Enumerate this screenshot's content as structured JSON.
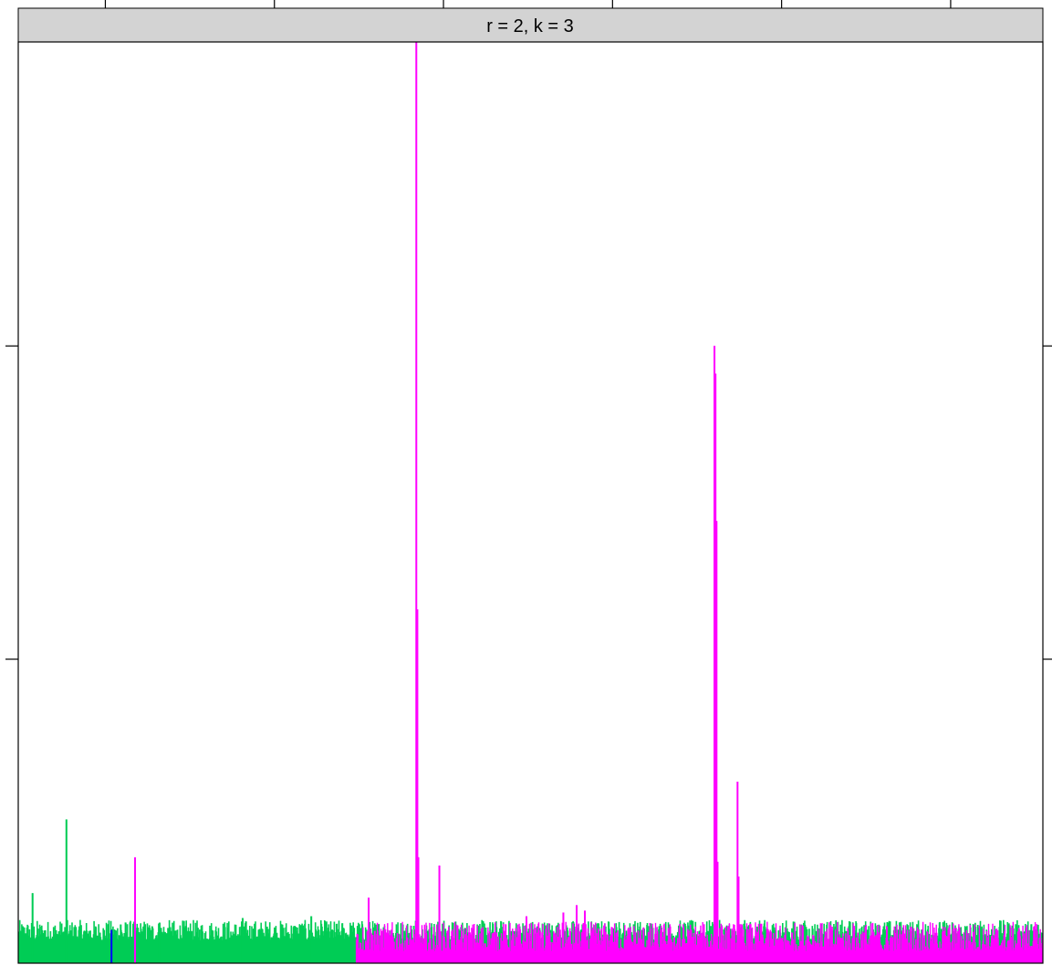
{
  "chart_data": {
    "type": "line",
    "title": "",
    "strip_label": "r = 2, k = 3",
    "strip_color": "#d3d3d3",
    "xlabel": "",
    "ylabel": "",
    "xlim": [
      0,
      1000
    ],
    "ylim": [
      0,
      100
    ],
    "x_ticks": [
      85,
      250,
      415,
      580,
      745,
      910
    ],
    "y_ticks": [
      0,
      33,
      67,
      100
    ],
    "grid": false,
    "legend": "none",
    "series": [
      {
        "color": "#00cc55",
        "baseline": 2.5,
        "noise": 2.2,
        "x_range": [
          0,
          1000
        ],
        "peaks": [
          {
            "x": 14,
            "y": 7.6
          },
          {
            "x": 47,
            "y": 15.6
          },
          {
            "x": 100,
            "y": 4.2
          },
          {
            "x": 138,
            "y": 4.4
          },
          {
            "x": 219,
            "y": 4.9
          },
          {
            "x": 286,
            "y": 5.1
          },
          {
            "x": 388,
            "y": 4.6
          },
          {
            "x": 703,
            "y": 5.1
          },
          {
            "x": 711,
            "y": 4.0
          },
          {
            "x": 843,
            "y": 3.1
          }
        ]
      },
      {
        "color": "#ff00ff",
        "baseline": 1.3,
        "noise": 3.2,
        "x_range": [
          330,
          1000
        ],
        "peaks": [
          {
            "x": 114,
            "y": 11.5
          },
          {
            "x": 342,
            "y": 7.1
          },
          {
            "x": 348,
            "y": 3.5
          },
          {
            "x": 388.5,
            "y": 100.0
          },
          {
            "x": 389.5,
            "y": 38.4
          },
          {
            "x": 390.5,
            "y": 11.5
          },
          {
            "x": 411,
            "y": 10.6
          },
          {
            "x": 496,
            "y": 5.1
          },
          {
            "x": 507,
            "y": 3.3
          },
          {
            "x": 532,
            "y": 5.5
          },
          {
            "x": 545,
            "y": 6.3
          },
          {
            "x": 553,
            "y": 5.7
          },
          {
            "x": 561,
            "y": 3.8
          },
          {
            "x": 578,
            "y": 3.0
          },
          {
            "x": 679.5,
            "y": 67.0
          },
          {
            "x": 680.5,
            "y": 64.0
          },
          {
            "x": 681.5,
            "y": 48.0
          },
          {
            "x": 682.5,
            "y": 11.0
          },
          {
            "x": 702,
            "y": 19.7
          },
          {
            "x": 703,
            "y": 9.4
          },
          {
            "x": 745,
            "y": 2.7
          },
          {
            "x": 752,
            "y": 2.4
          },
          {
            "x": 836,
            "y": 2.9
          },
          {
            "x": 960,
            "y": 2.2
          }
        ]
      },
      {
        "color": "#0000ff",
        "baseline": 0,
        "noise": 0,
        "x_range": [
          90,
          92
        ],
        "peaks": [
          {
            "x": 91,
            "y": 3.6
          }
        ]
      }
    ]
  }
}
